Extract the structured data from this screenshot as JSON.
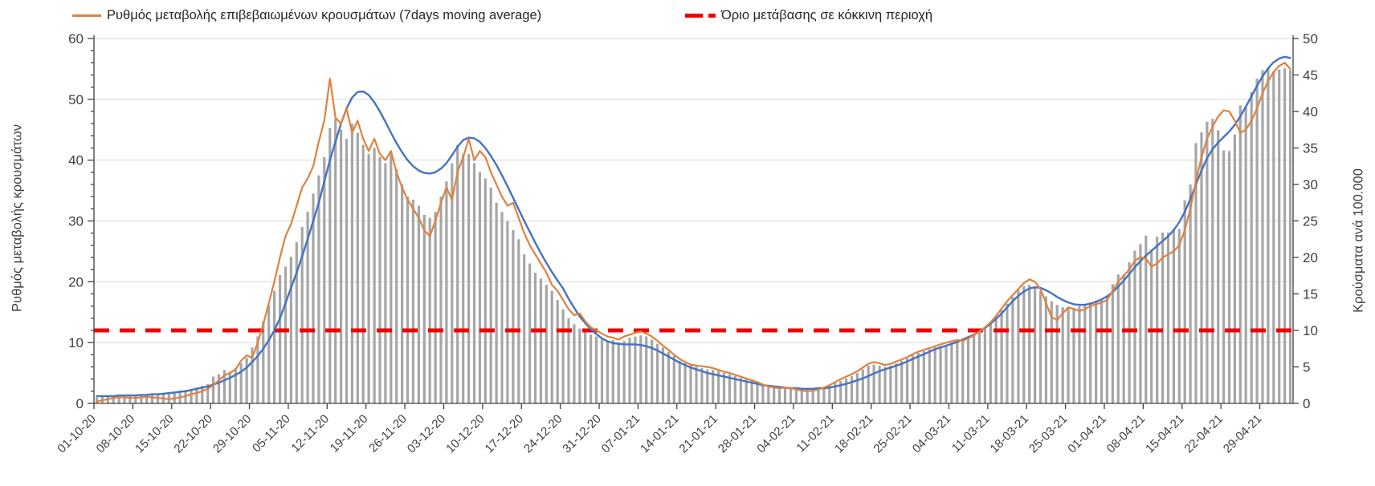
{
  "legend": {
    "series1_label": "Ρυθμός μεταβολής επιβεβαιωμένων κρουσμάτων (7days moving average)",
    "series2_label": "Όριο μετάβασης σε κόκκινη περιοχή"
  },
  "axes": {
    "left_title": "Ρυθμός μεταβολής κρουσμάτων",
    "right_title": "Κρούσματα ανά 100.000",
    "left_ticks": [
      0,
      10,
      20,
      30,
      40,
      50,
      60
    ],
    "right_ticks": [
      0,
      5,
      10,
      15,
      20,
      25,
      30,
      35,
      40,
      45,
      50
    ],
    "left_max": 60,
    "right_max": 50,
    "grid": "horizontal-every-10-left-units",
    "legend_position": "top"
  },
  "colors": {
    "bars": "#A6A6A6",
    "trend_line": "#4472C4",
    "ma_line": "#E0813E",
    "threshold": "#F00000",
    "gridline": "#D9D9D9",
    "axis": "#404040",
    "text": "#404040"
  },
  "chart_data": {
    "type": "bar",
    "title": "",
    "xlabel": "",
    "ylabel_left": "Ρυθμός μεταβολής κρουσμάτων",
    "ylabel_right": "Κρούσματα ανά 100.000",
    "ylim_left": [
      0,
      60
    ],
    "ylim_right": [
      0,
      50
    ],
    "days_total": 216,
    "x_tick_labels": [
      "01-10-20",
      "08-10-20",
      "15-10-20",
      "22-10-20",
      "29-10-20",
      "05-11-20",
      "12-11-20",
      "19-11-20",
      "26-11-20",
      "03-12-20",
      "10-12-20",
      "17-12-20",
      "24-12-20",
      "31-12-20",
      "07-01-21",
      "14-01-21",
      "21-01-21",
      "28-01-21",
      "04-02-21",
      "11-02-21",
      "18-02-21",
      "25-02-21",
      "04-03-21",
      "11-03-21",
      "18-03-21",
      "25-03-21",
      "01-04-21",
      "08-04-21",
      "15-04-21",
      "22-04-21",
      "29-04-21"
    ],
    "x_tick_day_indices": [
      0,
      7,
      14,
      21,
      28,
      35,
      42,
      49,
      56,
      63,
      70,
      77,
      84,
      91,
      98,
      105,
      112,
      119,
      126,
      133,
      140,
      147,
      154,
      161,
      168,
      175,
      182,
      189,
      196,
      203,
      210
    ],
    "threshold": {
      "label": "Όριο μετάβασης σε κόκκινη περιοχή",
      "value_right_axis": 10,
      "value_left_axis": 12,
      "style": "dashed-red"
    },
    "series": [
      {
        "name": "daily-bars",
        "type": "bar",
        "color": "#A6A6A6",
        "values": [
          1.0,
          1.1,
          1.1,
          1.2,
          1.2,
          1.3,
          1.2,
          1.3,
          1.3,
          1.4,
          1.5,
          1.5,
          1.6,
          1.6,
          1.9,
          2.1,
          2.2,
          2.4,
          2.6,
          2.9,
          3.2,
          4.4,
          4.8,
          5.5,
          5.2,
          5.8,
          6.6,
          7.5,
          9.2,
          11.0,
          13.5,
          16.2,
          18.5,
          21.1,
          22.5,
          24.1,
          26.5,
          29.0,
          31.5,
          34.5,
          37.5,
          40.5,
          45.3,
          46.8,
          45.0,
          43.5,
          46.0,
          44.5,
          42.5,
          41.0,
          42.0,
          40.5,
          39.5,
          41.0,
          38.5,
          36.0,
          34.0,
          33.5,
          32.5,
          31.0,
          30.5,
          31.5,
          34.0,
          36.5,
          39.5,
          42.5,
          41.0,
          41.0,
          39.5,
          38.0,
          37.0,
          35.5,
          33.0,
          31.5,
          30.0,
          28.5,
          27.0,
          24.5,
          23.0,
          21.5,
          20.5,
          19.5,
          18.5,
          17.0,
          15.5,
          14.0,
          13.0,
          12.3,
          11.8,
          11.3,
          11.0,
          10.6,
          10.2,
          10.4,
          10.0,
          10.3,
          10.8,
          11.0,
          11.2,
          11.0,
          10.5,
          9.8,
          9.2,
          8.5,
          7.8,
          7.0,
          6.6,
          6.3,
          6.0,
          5.8,
          5.6,
          5.5,
          5.3,
          5.0,
          4.8,
          4.5,
          4.2,
          4.0,
          3.7,
          3.4,
          3.2,
          3.0,
          2.9,
          2.8,
          2.7,
          2.6,
          2.5,
          2.4,
          2.3,
          2.3,
          2.4,
          2.6,
          2.9,
          3.3,
          3.7,
          4.1,
          4.5,
          5.0,
          5.6,
          6.2,
          6.4,
          6.2,
          6.0,
          6.2,
          6.6,
          7.0,
          7.4,
          7.9,
          8.3,
          8.6,
          8.9,
          9.2,
          9.4,
          9.6,
          9.9,
          10.2,
          10.6,
          11.0,
          11.4,
          11.9,
          12.6,
          13.4,
          14.3,
          15.3,
          16.4,
          17.5,
          18.6,
          19.3,
          19.5,
          19.2,
          18.5,
          17.6,
          16.8,
          16.2,
          15.8,
          15.6,
          15.7,
          16.0,
          16.3,
          16.6,
          16.9,
          17.2,
          17.5,
          19.6,
          21.2,
          21.2,
          23.2,
          25.1,
          26.2,
          27.6,
          25.3,
          27.4,
          28.1,
          28.1,
          28.7,
          28.7,
          33.4,
          36.0,
          42.8,
          44.6,
          46.3,
          46.8,
          44.9,
          41.6,
          41.5,
          44.2,
          49.0,
          48.8,
          51.2,
          53.4,
          54.8,
          55.0,
          54.6,
          54.9,
          55.1,
          54.8
        ]
      },
      {
        "name": "smoothed-trend-line",
        "type": "line",
        "color": "#4472C4",
        "values": [
          1.2,
          1.2,
          1.2,
          1.2,
          1.3,
          1.3,
          1.3,
          1.3,
          1.4,
          1.4,
          1.5,
          1.5,
          1.6,
          1.7,
          1.8,
          1.9,
          2.0,
          2.2,
          2.4,
          2.6,
          2.8,
          3.1,
          3.4,
          3.8,
          4.2,
          4.7,
          5.2,
          5.9,
          6.8,
          7.8,
          9.0,
          10.4,
          12.0,
          14.0,
          16.5,
          19.0,
          21.5,
          24.2,
          27.0,
          30.0,
          33.0,
          36.5,
          40.0,
          43.0,
          46.0,
          48.5,
          50.3,
          51.2,
          51.3,
          50.7,
          49.5,
          48.0,
          46.3,
          44.5,
          42.8,
          41.3,
          40.0,
          39.0,
          38.3,
          37.9,
          37.8,
          38.0,
          38.6,
          39.5,
          40.8,
          42.2,
          43.3,
          43.7,
          43.6,
          43.0,
          42.0,
          40.7,
          39.2,
          37.5,
          35.7,
          33.8,
          31.9,
          30.0,
          28.2,
          26.4,
          24.7,
          23.1,
          21.6,
          20.2,
          18.9,
          17.2,
          15.7,
          14.3,
          13.2,
          12.2,
          11.4,
          10.7,
          10.2,
          9.9,
          9.8,
          9.7,
          9.7,
          9.7,
          9.6,
          9.4,
          9.1,
          8.7,
          8.2,
          7.7,
          7.2,
          6.7,
          6.3,
          5.9,
          5.6,
          5.3,
          5.0,
          4.8,
          4.6,
          4.4,
          4.2,
          4.0,
          3.8,
          3.6,
          3.4,
          3.2,
          3.0,
          2.9,
          2.8,
          2.7,
          2.6,
          2.5,
          2.5,
          2.4,
          2.4,
          2.4,
          2.5,
          2.5,
          2.6,
          2.8,
          3.0,
          3.2,
          3.5,
          3.8,
          4.1,
          4.5,
          4.9,
          5.3,
          5.6,
          5.9,
          6.2,
          6.5,
          6.9,
          7.3,
          7.7,
          8.1,
          8.5,
          8.9,
          9.2,
          9.5,
          9.8,
          10.1,
          10.5,
          10.9,
          11.3,
          11.8,
          12.4,
          13.1,
          13.9,
          14.8,
          15.8,
          16.8,
          17.7,
          18.4,
          18.9,
          19.1,
          19.0,
          18.6,
          18.1,
          17.5,
          17.0,
          16.6,
          16.3,
          16.2,
          16.2,
          16.4,
          16.7,
          17.1,
          17.6,
          18.3,
          19.2,
          20.2,
          21.3,
          22.4,
          23.4,
          24.3,
          25.1,
          25.9,
          26.7,
          27.5,
          28.5,
          29.8,
          31.5,
          33.6,
          36.0,
          38.3,
          40.3,
          41.8,
          42.9,
          43.8,
          44.7,
          45.8,
          47.2,
          48.8,
          50.5,
          52.2,
          53.8,
          55.1,
          56.1,
          56.7,
          57.0,
          56.8
        ]
      },
      {
        "name": "rate-of-change-7day-ma-line",
        "type": "line",
        "color": "#E0813E",
        "values": [
          0.3,
          0.5,
          0.7,
          0.9,
          1.0,
          1.0,
          0.9,
          0.9,
          1.0,
          1.1,
          1.0,
          0.9,
          0.8,
          0.7,
          0.8,
          1.0,
          1.2,
          1.5,
          1.7,
          2.0,
          2.4,
          3.0,
          3.8,
          4.6,
          5.0,
          5.6,
          7.0,
          7.9,
          7.5,
          10.0,
          13.0,
          16.5,
          20.0,
          24.0,
          27.5,
          29.5,
          32.5,
          35.5,
          37.0,
          39.0,
          43.0,
          46.5,
          53.4,
          47.0,
          46.0,
          48.5,
          44.5,
          46.5,
          43.5,
          41.5,
          43.5,
          41.0,
          40.0,
          41.5,
          38.0,
          35.5,
          33.5,
          32.0,
          30.5,
          28.5,
          27.5,
          30.0,
          33.0,
          35.5,
          33.5,
          38.0,
          40.5,
          43.5,
          40.0,
          41.5,
          40.5,
          38.0,
          36.0,
          34.0,
          32.5,
          33.0,
          30.5,
          28.0,
          26.0,
          24.5,
          23.0,
          21.5,
          19.5,
          18.5,
          17.0,
          15.5,
          14.5,
          14.8,
          13.5,
          12.5,
          12.0,
          11.5,
          11.0,
          10.8,
          10.5,
          11.0,
          11.3,
          11.6,
          11.8,
          11.5,
          11.0,
          10.3,
          9.5,
          8.8,
          8.0,
          7.3,
          6.8,
          6.4,
          6.2,
          6.1,
          6.0,
          5.8,
          5.5,
          5.2,
          5.0,
          4.7,
          4.4,
          4.1,
          3.8,
          3.5,
          3.1,
          2.8,
          2.6,
          2.5,
          2.6,
          2.5,
          2.3,
          2.1,
          2.0,
          2.1,
          2.3,
          2.6,
          3.0,
          3.5,
          4.0,
          4.4,
          4.8,
          5.3,
          5.9,
          6.5,
          6.8,
          6.6,
          6.3,
          6.5,
          6.9,
          7.2,
          7.6,
          8.1,
          8.5,
          8.8,
          9.1,
          9.4,
          9.7,
          10.0,
          10.2,
          10.4,
          10.3,
          10.7,
          11.2,
          11.8,
          12.5,
          13.3,
          14.4,
          15.6,
          16.8,
          17.8,
          18.8,
          19.8,
          20.4,
          20.0,
          18.8,
          16.5,
          14.2,
          13.7,
          14.8,
          15.8,
          15.5,
          15.2,
          15.5,
          16.0,
          16.3,
          16.6,
          17.0,
          18.5,
          20.0,
          21.0,
          22.0,
          23.5,
          24.0,
          23.8,
          22.5,
          23.0,
          24.0,
          24.5,
          25.0,
          26.0,
          28.5,
          32.0,
          36.5,
          40.5,
          43.5,
          45.5,
          47.2,
          48.2,
          48.0,
          46.5,
          44.5,
          45.0,
          46.5,
          48.5,
          51.0,
          53.0,
          54.5,
          55.5,
          56.0,
          55.0
        ]
      }
    ]
  }
}
